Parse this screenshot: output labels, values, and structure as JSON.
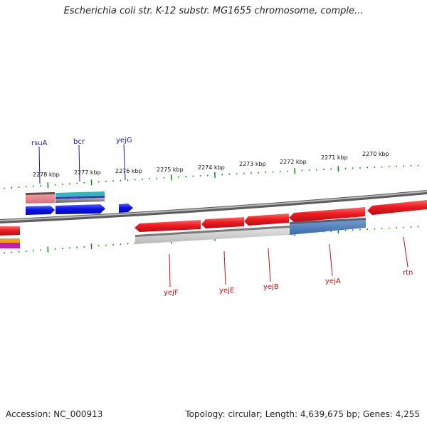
{
  "title": "Escherichia coli str. K-12 substr. MG1655 chromosome, comple...",
  "footer": {
    "accession": "Accession: NC_000913",
    "stats": "Topology: circular; Length: 4,639,675 bp; Genes: 4,255"
  },
  "colors": {
    "forward_gene": "#0a14e6",
    "reverse_gene": "#e8121c",
    "forward_label": "#1a1ab0",
    "reverse_label": "#c81010",
    "tick": "#1f8a1f",
    "backbone": "#8a8a8a"
  },
  "scale_labels": [
    "2278 kbp",
    "2277 kbp",
    "2276 kbp",
    "2275 kbp",
    "2274 kbp",
    "2273 kbp",
    "2272 kbp",
    "2271 kbp",
    "2270 kbp"
  ],
  "forward_genes": [
    "rsuA",
    "bcr",
    "yejG"
  ],
  "reverse_genes": [
    "yejF",
    "yejE",
    "yejB",
    "yejA",
    "rtn"
  ]
}
